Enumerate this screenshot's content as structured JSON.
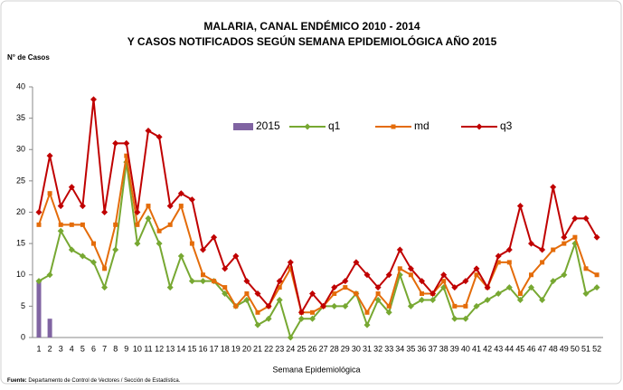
{
  "chart_data": {
    "type": "line",
    "title": [
      "MALARIA, CANAL ENDÉMICO 2010 - 2014",
      "Y CASOS NOTIFICADOS SEGÚN SEMANA EPIDEMIOLÓGICA AÑO 2015"
    ],
    "ylabel": "N° de Casos",
    "xlabel": "Semana Epidemiológica",
    "source_label": "Fuente:",
    "source": "Departamento de Control de Vectores / Sección de Estadística.",
    "categories": [
      "1",
      "2",
      "3",
      "4",
      "5",
      "6",
      "7",
      "8",
      "9",
      "10",
      "11",
      "12",
      "13",
      "14",
      "15",
      "16",
      "17",
      "18",
      "19",
      "20",
      "21",
      "22",
      "23",
      "24",
      "25",
      "26",
      "27",
      "28",
      "29",
      "30",
      "31",
      "32",
      "33",
      "34",
      "35",
      "36",
      "37",
      "38",
      "39",
      "40",
      "41",
      "42",
      "43",
      "44",
      "45",
      "46",
      "47",
      "48",
      "49",
      "50",
      "51",
      "52"
    ],
    "ylim": [
      0,
      40
    ],
    "yticks": [
      0,
      5,
      10,
      15,
      20,
      25,
      30,
      35,
      40
    ],
    "grid": false,
    "series": [
      {
        "name": "2015",
        "type": "bar",
        "color": "#8064a2",
        "values": [
          9,
          3,
          null,
          null,
          null,
          null,
          null,
          null,
          null,
          null,
          null,
          null,
          null,
          null,
          null,
          null,
          null,
          null,
          null,
          null,
          null,
          null,
          null,
          null,
          null,
          null,
          null,
          null,
          null,
          null,
          null,
          null,
          null,
          null,
          null,
          null,
          null,
          null,
          null,
          null,
          null,
          null,
          null,
          null,
          null,
          null,
          null,
          null,
          null,
          null,
          null,
          null
        ]
      },
      {
        "name": "q1",
        "type": "line",
        "marker": "diamond",
        "color": "#77a832",
        "values": [
          9,
          10,
          17,
          14,
          13,
          12,
          8,
          14,
          28,
          15,
          19,
          15,
          8,
          13,
          9,
          9,
          9,
          7,
          5,
          6,
          2,
          3,
          6,
          0,
          3,
          3,
          5,
          5,
          5,
          7,
          2,
          6,
          4,
          10,
          5,
          6,
          6,
          8,
          3,
          3,
          5,
          6,
          7,
          8,
          6,
          8,
          6,
          9,
          10,
          15,
          7,
          8
        ]
      },
      {
        "name": "md",
        "type": "line",
        "marker": "square",
        "color": "#e46c0a",
        "values": [
          18,
          23,
          18,
          18,
          18,
          15,
          11,
          18,
          29,
          18,
          21,
          17,
          18,
          21,
          15,
          10,
          9,
          8,
          5,
          7,
          4,
          5,
          8,
          11,
          4,
          4,
          5,
          7,
          8,
          7,
          4,
          7,
          5,
          11,
          10,
          7,
          7,
          9,
          5,
          5,
          10,
          8,
          12,
          12,
          7,
          10,
          12,
          14,
          15,
          16,
          11,
          10
        ]
      },
      {
        "name": "q3",
        "type": "line",
        "marker": "diamond",
        "color": "#c00000",
        "values": [
          20,
          29,
          21,
          24,
          21,
          38,
          20,
          31,
          31,
          20,
          33,
          32,
          21,
          23,
          22,
          14,
          16,
          11,
          13,
          9,
          7,
          5,
          9,
          12,
          4,
          7,
          5,
          8,
          9,
          12,
          10,
          8,
          10,
          14,
          11,
          9,
          7,
          10,
          8,
          9,
          11,
          8,
          13,
          14,
          21,
          15,
          14,
          24,
          16,
          19,
          19,
          16
        ]
      }
    ]
  }
}
